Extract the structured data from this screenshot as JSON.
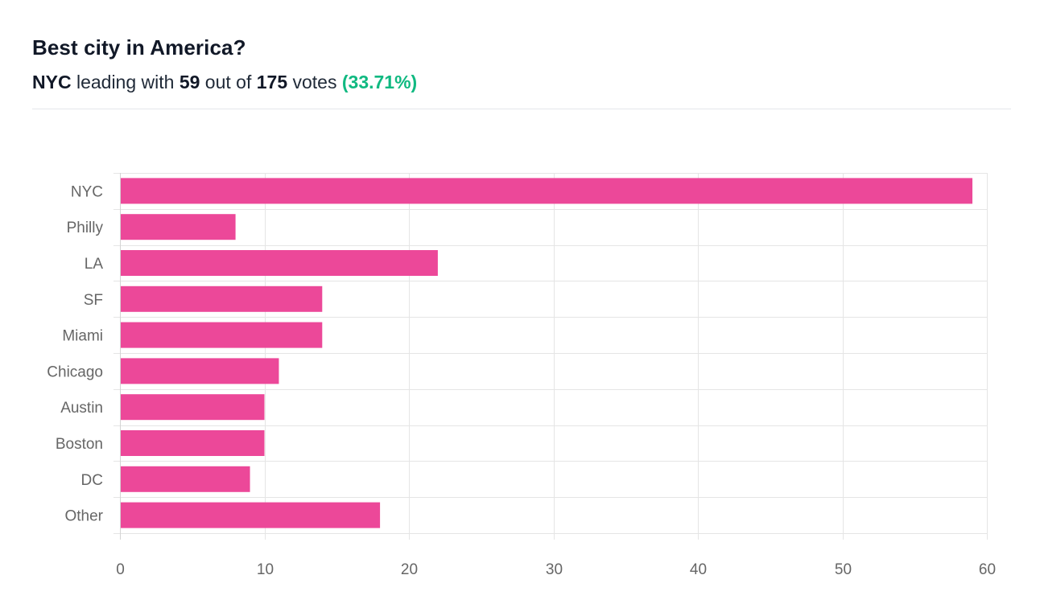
{
  "header": {
    "title": "Best city in America?",
    "leader": "NYC",
    "leading_text": "leading with",
    "leader_votes": "59",
    "out_of_text": "out of",
    "total_votes": "175",
    "votes_text": "votes",
    "percent": "(33.71%)"
  },
  "colors": {
    "bar": "#ec4899",
    "accent_green": "#10b981",
    "grid": "#e5e5e5"
  },
  "chart_data": {
    "type": "bar",
    "orientation": "horizontal",
    "title": "Best city in America?",
    "xlabel": "",
    "ylabel": "",
    "categories": [
      "NYC",
      "Philly",
      "LA",
      "SF",
      "Miami",
      "Chicago",
      "Austin",
      "Boston",
      "DC",
      "Other"
    ],
    "values": [
      59,
      8,
      22,
      14,
      14,
      11,
      10,
      10,
      9,
      18
    ],
    "xlim": [
      0,
      60
    ],
    "xticks": [
      0,
      10,
      20,
      30,
      40,
      50,
      60
    ],
    "grid": true,
    "legend": "none"
  }
}
